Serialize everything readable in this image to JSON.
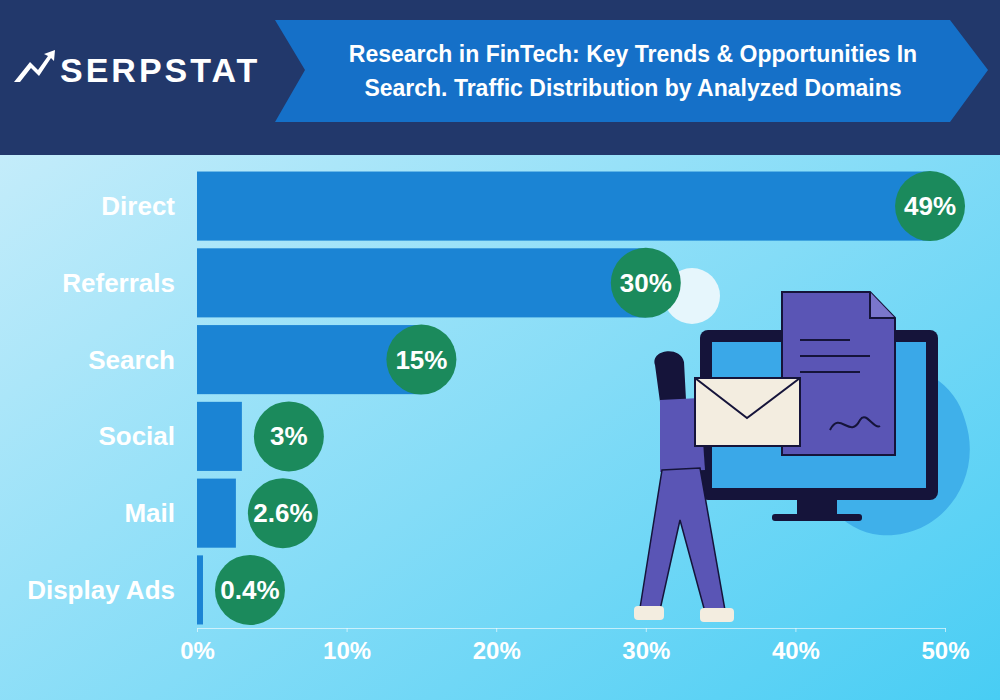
{
  "header": {
    "logo": "SERPSTAT"
  },
  "chart_data": {
    "type": "bar",
    "title": "Research in FinTech: Key Trends & Opportunities In Search. Traffic Distribution by Analyzed Domains",
    "orientation": "horizontal",
    "categories": [
      "Direct",
      "Referrals",
      "Search",
      "Social",
      "Mail",
      "Display Ads"
    ],
    "values": [
      49,
      30,
      15,
      3,
      2.6,
      0.4
    ],
    "value_labels": [
      "49%",
      "30%",
      "15%",
      "3%",
      "2.6%",
      "0.4%"
    ],
    "data_labels": true,
    "color": "#1b84d4",
    "xlim": [
      0,
      50
    ],
    "xticks": [
      {
        "value": 0,
        "label": "0%"
      },
      {
        "value": 10,
        "label": "10%"
      },
      {
        "value": 20,
        "label": "20%"
      },
      {
        "value": 30,
        "label": "30%"
      },
      {
        "value": 40,
        "label": "40%"
      },
      {
        "value": 50,
        "label": "50%"
      }
    ],
    "grid": false
  }
}
